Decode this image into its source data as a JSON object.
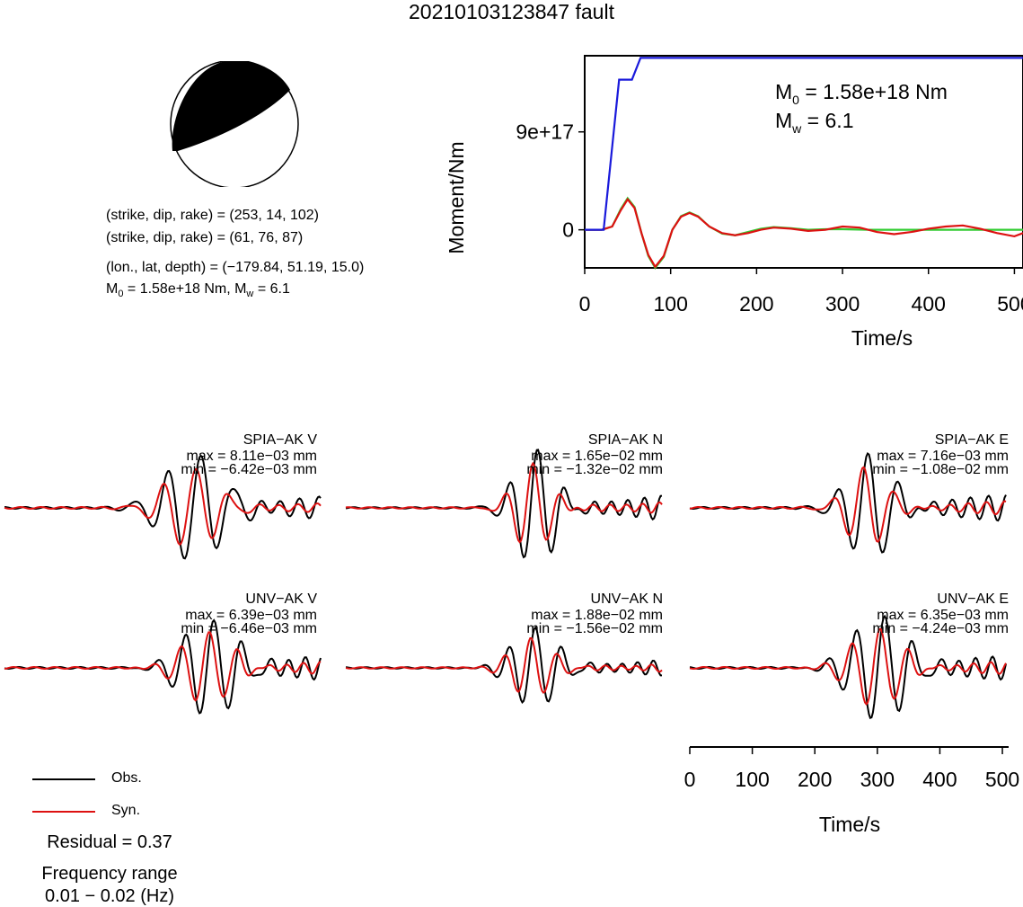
{
  "title": "20210103123847 fault",
  "beachball": {
    "color_fill": "#000000",
    "color_empty": "#ffffff"
  },
  "parameters": {
    "line1": "(strike, dip, rake) = (253, 14, 102)",
    "line2": "(strike, dip, rake) = (61, 76, 87)",
    "line3": "(lon., lat, depth) = (−179.84, 51.19, 15.0)",
    "m0_label": "M",
    "m0_sub": "0",
    "m0_value": " = 1.58e+18 Nm, M",
    "mw_sub": "w",
    "mw_value": " = 6.1"
  },
  "moment_plot": {
    "ylabel": "Moment/Nm",
    "xlabel": "Time/s",
    "annotation_m0_prefix": "M",
    "annotation_m0_sub": "0",
    "annotation_m0_value": " = 1.58e+18 Nm",
    "annotation_mw_prefix": "M",
    "annotation_mw_sub": "w",
    "annotation_mw_value": " = 6.1"
  },
  "waveform_panels": {
    "spia_v": {
      "station": "SPIA−AK V",
      "max": "max = 8.11e−03 mm",
      "min": "min = −6.42e−03 mm"
    },
    "spia_n": {
      "station": "SPIA−AK N",
      "max": "max = 1.65e−02 mm",
      "min": "min = −1.32e−02 mm"
    },
    "spia_e": {
      "station": "SPIA−AK E",
      "max": "max = 7.16e−03 mm",
      "min": "min = −1.08e−02 mm"
    },
    "unv_v": {
      "station": "UNV−AK V",
      "max": "max = 6.39e−03 mm",
      "min": "min = −6.46e−03 mm"
    },
    "unv_n": {
      "station": "UNV−AK N",
      "max": "max = 1.88e−02 mm",
      "min": "min = −1.56e−02 mm"
    },
    "unv_e": {
      "station": "UNV−AK E",
      "max": "max = 6.35e−03 mm",
      "min": "min = −4.24e−03 mm"
    },
    "bottom_xlabel": "Time/s"
  },
  "legend": {
    "obs_label": "Obs.",
    "syn_label": "Syn.",
    "obs_color": "#000000",
    "syn_color": "#dd1111"
  },
  "residual": "Residual = 0.37",
  "frequency": {
    "line1": "Frequency range",
    "line2": "0.01 − 0.02 (Hz)"
  },
  "chart_data": [
    {
      "type": "line",
      "name": "moment-rate-plot",
      "xlabel": "Time/s",
      "ylabel": "Moment/Nm",
      "xlim": [
        0,
        510
      ],
      "ylim": [
        -3.5e+17,
        1.6e+18
      ],
      "xticks": [
        "0",
        "100",
        "200",
        "300",
        "400",
        "500"
      ],
      "yticks": [
        {
          "value": 0,
          "label": "0"
        },
        {
          "value": 9e+17,
          "label": "9e+17"
        }
      ],
      "grid": false,
      "series": [
        {
          "color": "#1a1adb",
          "x": [
            0,
            22,
            40,
            55,
            65,
            510
          ],
          "y": [
            0,
            0,
            1.38e+18,
            1.38e+18,
            1.58e+18,
            1.58e+18
          ]
        },
        {
          "color": "#dd1111",
          "x": [
            0,
            20,
            32,
            42,
            50,
            58,
            66,
            74,
            82,
            92,
            102,
            112,
            122,
            132,
            145,
            160,
            175,
            190,
            205,
            220,
            240,
            260,
            280,
            300,
            320,
            340,
            360,
            380,
            400,
            420,
            440,
            460,
            480,
            500,
            510
          ],
          "y": [
            0,
            0,
            3e+16,
            1.8e+17,
            2.8e+17,
            2e+17,
            -3e+16,
            -2.3e+17,
            -3.4e+17,
            -2.4e+17,
            0,
            1.2e+17,
            1.55e+17,
            1.2e+17,
            3e+16,
            -3e+16,
            -5e+16,
            -3e+16,
            0,
            2e+16,
            1e+16,
            -1e+16,
            0,
            3e+16,
            2e+16,
            -2e+16,
            -4e+16,
            -2e+16,
            1e+16,
            3e+16,
            4e+16,
            1e+16,
            -3e+16,
            -6e+16,
            -3e+16
          ]
        },
        {
          "color": "#33cc33",
          "x": [
            0,
            20,
            32,
            42,
            50,
            58,
            66,
            74,
            82,
            92,
            102,
            112,
            122,
            132,
            145,
            160,
            175,
            190,
            205,
            220,
            240,
            260,
            280,
            300,
            330,
            360,
            400,
            450,
            510
          ],
          "y": [
            0,
            0,
            3e+16,
            1.9e+17,
            2.9e+17,
            2.1e+17,
            -3e+16,
            -2.4e+17,
            -3.5e+17,
            -2.5e+17,
            0,
            1.25e+17,
            1.6e+17,
            1.25e+17,
            3e+16,
            -3.5e+16,
            -5e+16,
            -2e+16,
            1e+16,
            2.5e+16,
            1.5e+16,
            0,
            5000000000000000.0,
            5000000000000000.0,
            0,
            0,
            0,
            0,
            0
          ]
        }
      ]
    },
    {
      "type": "line",
      "name": "waveform-time-axis",
      "xlabel": "Time/s",
      "xlim": [
        0,
        510
      ],
      "xticks": [
        "0",
        "100",
        "200",
        "300",
        "400",
        "500"
      ]
    }
  ]
}
